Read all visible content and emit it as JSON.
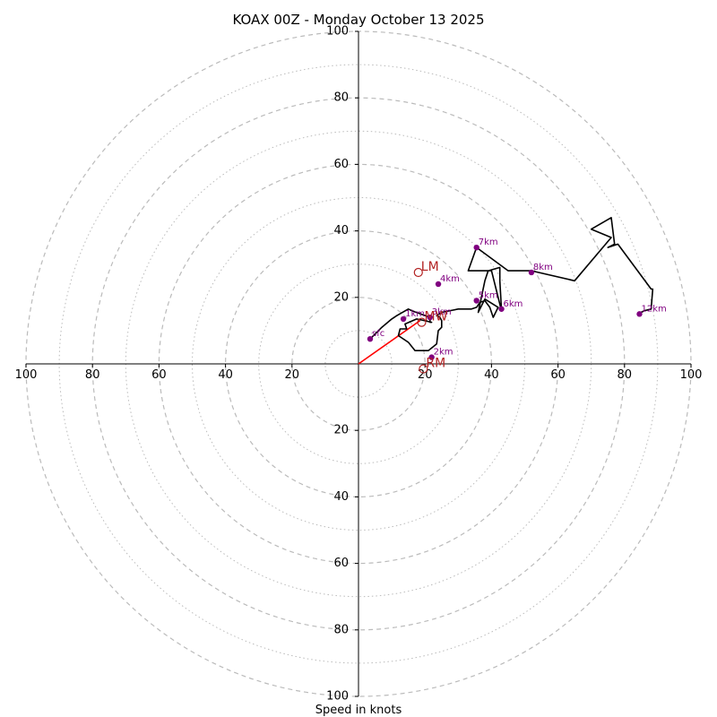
{
  "chart_data": {
    "type": "hodograph",
    "title": "KOAX 00Z - Monday October 13 2025",
    "xlabel": "Speed in knots",
    "rlim": [
      0,
      100
    ],
    "major_rings": [
      20,
      40,
      60,
      80,
      100
    ],
    "minor_rings": [
      10,
      30,
      50,
      70,
      90
    ],
    "axis_ticks": {
      "left": [
        {
          "value": 100,
          "label": "100"
        },
        {
          "value": 80,
          "label": "80"
        },
        {
          "value": 60,
          "label": "60"
        },
        {
          "value": 40,
          "label": "40"
        },
        {
          "value": 20,
          "label": "20"
        }
      ],
      "right": [
        {
          "value": 20,
          "label": "20"
        },
        {
          "value": 40,
          "label": "40"
        },
        {
          "value": 60,
          "label": "60"
        },
        {
          "value": 80,
          "label": "80"
        },
        {
          "value": 100,
          "label": "100"
        }
      ],
      "top": [
        {
          "value": 100,
          "label": "100"
        },
        {
          "value": 80,
          "label": "80"
        },
        {
          "value": 60,
          "label": "60"
        },
        {
          "value": 40,
          "label": "40"
        },
        {
          "value": 20,
          "label": "20"
        }
      ],
      "bottom": [
        {
          "value": 20,
          "label": "20"
        },
        {
          "value": 40,
          "label": "40"
        },
        {
          "value": 60,
          "label": "60"
        },
        {
          "value": 80,
          "label": "80"
        },
        {
          "value": 100,
          "label": "100"
        }
      ]
    },
    "trace": {
      "color": "#000000",
      "u": [
        3.5,
        7,
        10,
        11.5,
        15,
        16,
        21.5,
        21.5,
        22,
        20,
        17.5,
        14,
        14.5,
        12.5,
        12,
        15,
        17,
        21,
        23.5,
        24,
        25,
        25,
        24.5,
        23.5,
        25,
        30,
        34,
        35.5,
        36.5,
        38,
        39.5,
        40.5,
        42,
        38,
        36,
        38,
        39,
        42.5,
        42.5,
        43,
        43,
        40,
        37,
        33,
        35.5,
        45,
        52,
        65,
        76,
        70,
        76,
        77,
        75,
        78,
        88,
        88.5,
        88,
        86,
        84
      ],
      "v": [
        7.5,
        11,
        13.5,
        14.5,
        16.5,
        16,
        14,
        12.5,
        12.5,
        13,
        13.5,
        12,
        10.5,
        10.5,
        8.5,
        6.5,
        4,
        4,
        6,
        10,
        11,
        13,
        14,
        14.5,
        15.5,
        16.5,
        16.5,
        17,
        18.5,
        19,
        17,
        14,
        17,
        19.5,
        15.5,
        25,
        28,
        29,
        25,
        16.5,
        16,
        28,
        28,
        28,
        35,
        28,
        28,
        25,
        38,
        40.5,
        44,
        36,
        35,
        36,
        22.5,
        22.5,
        16.5,
        16,
        15
      ]
    },
    "height_markers": [
      {
        "label": "sfc",
        "u": 3.5,
        "v": 7.5
      },
      {
        "label": "1km",
        "u": 13.5,
        "v": 13.5
      },
      {
        "label": "2km",
        "u": 22,
        "v": 2
      },
      {
        "label": "3km",
        "u": 21.5,
        "v": 14
      },
      {
        "label": "4km",
        "u": 24,
        "v": 24
      },
      {
        "label": "5km",
        "u": 35.5,
        "v": 19
      },
      {
        "label": "6km",
        "u": 43,
        "v": 16.5
      },
      {
        "label": "7km",
        "u": 35.5,
        "v": 35
      },
      {
        "label": "8km",
        "u": 52,
        "v": 27.5
      },
      {
        "label": "12km",
        "u": 84.5,
        "v": 15
      }
    ],
    "storm_motion_vector": {
      "color": "#ff0000",
      "from": [
        0,
        0
      ],
      "to": [
        18.5,
        13
      ]
    },
    "storm_markers": [
      {
        "label": "LM",
        "u": 18,
        "v": 27.5
      },
      {
        "label": "MW",
        "u": 19,
        "v": 12.5
      },
      {
        "label": "RM",
        "u": 19.5,
        "v": -1.5
      }
    ],
    "colors": {
      "trace": "#000000",
      "height_marker": "#800080",
      "storm_vector": "#ff0000",
      "storm_marker": "#b22222",
      "ring": "#bbbbbb",
      "axis": "#000000"
    }
  }
}
